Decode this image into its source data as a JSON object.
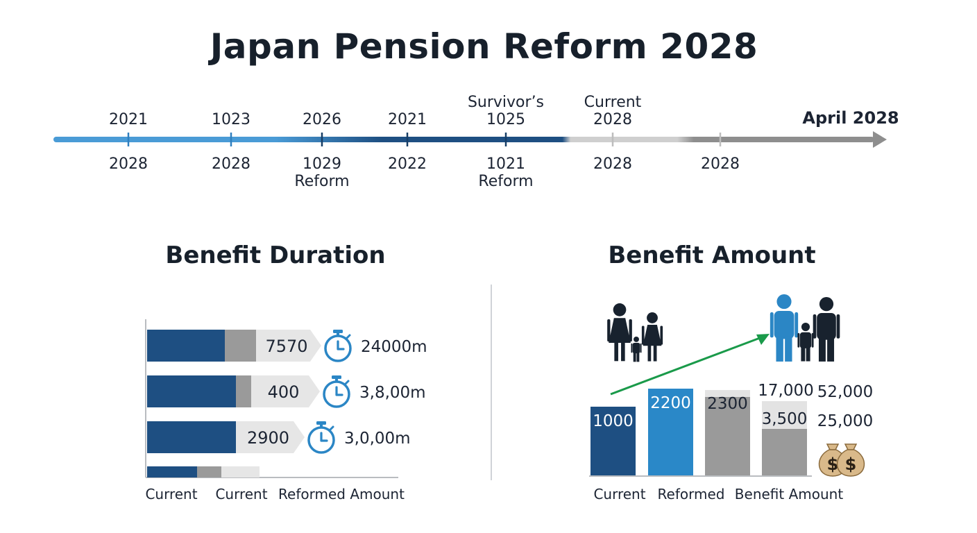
{
  "title": "Japan Pension Reform 2028",
  "timeline": {
    "end_label": "April 2028",
    "points": [
      {
        "top": [
          "2021"
        ],
        "bottom": [
          "2028"
        ]
      },
      {
        "top": [
          "1023"
        ],
        "bottom": [
          "2028"
        ]
      },
      {
        "top": [
          "2026"
        ],
        "bottom": [
          "1029",
          "Reform"
        ]
      },
      {
        "top": [
          "2021"
        ],
        "bottom": [
          "2022"
        ]
      },
      {
        "top": [
          "Survivor’s",
          "1025"
        ],
        "bottom": [
          "1021",
          "Reform"
        ]
      },
      {
        "top": [
          "Current",
          "2028"
        ],
        "bottom": [
          "2028"
        ]
      },
      {
        "top": [],
        "bottom": [
          "2028"
        ]
      }
    ],
    "colors": {
      "light": "#4a9bd6",
      "dark": "#1e4f82",
      "pale": "#cfcfcf",
      "grey": "#8e8e8e"
    }
  },
  "chart_data": [
    {
      "type": "bar",
      "orientation": "horizontal",
      "title": "Benefit Duration",
      "categories": [
        "Current",
        "Current",
        "Reformed Amount"
      ],
      "rows": [
        {
          "label": "7570",
          "annotation": "24000m",
          "segments": [
            112,
            45,
            80
          ]
        },
        {
          "label": "400",
          "annotation": "3,8,00m",
          "segments": [
            128,
            22,
            85
          ]
        },
        {
          "label": "2900",
          "annotation": "3,0,00m",
          "segments": [
            128,
            0,
            85
          ]
        },
        {
          "label": "",
          "annotation": "",
          "segments": [
            72,
            35,
            55
          ]
        }
      ],
      "colors": {
        "primary": "#1e4f82",
        "secondary": "#9a9a9a",
        "tertiary": "#e6e6e6",
        "icon": "#2b86c5"
      }
    },
    {
      "type": "bar",
      "title": "Benefit Amount",
      "categories": [
        "Current",
        "Reformed",
        "Benefit Amount"
      ],
      "bars": [
        {
          "label": "1000",
          "value": 1000,
          "color": "#1e4f82",
          "label_color": "#ffffff"
        },
        {
          "label": "2200",
          "value": 1260,
          "color": "#2a88c8",
          "label_color": "#ffffff"
        },
        {
          "label": "2300",
          "value": 1140,
          "back_value": 1240,
          "color": "#9a9a9a",
          "back_color": "#e3e3e3",
          "label_color": "#1c2433"
        },
        {
          "label": "3,500",
          "top_label": "17,000",
          "value": 680,
          "back_value": 1080,
          "color": "#9a9a9a",
          "back_color": "#e3e3e3",
          "label_color": "#1c2433"
        }
      ],
      "side_values": [
        "52,000",
        "25,000"
      ],
      "ylim": [
        0,
        1400
      ],
      "colors": {
        "arrow": "#1a9a4a",
        "family_dark": "#18222e",
        "family_blue": "#2b86c5",
        "bag": "#d9b98a"
      }
    }
  ]
}
